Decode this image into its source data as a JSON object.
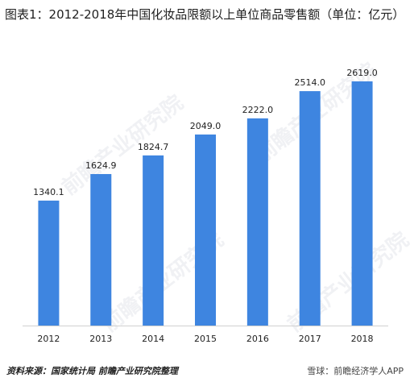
{
  "chart_data": {
    "type": "bar",
    "title": "图表1：2012-2018年中国化妆品限额以上单位商品零售额（单位：亿元）",
    "categories": [
      "2012",
      "2013",
      "2014",
      "2015",
      "2016",
      "2017",
      "2018"
    ],
    "values": [
      1340.1,
      1624.9,
      1824.7,
      2049.0,
      2222.0,
      2514.0,
      2619.0
    ],
    "value_labels": [
      "1340.1",
      "1624.9",
      "1824.7",
      "2049.0",
      "2222.0",
      "2514.0",
      "2619.0"
    ],
    "xlabel": "",
    "ylabel": "",
    "ylim": [
      0,
      2800
    ],
    "grid": false,
    "legend": "none",
    "bar_color": "#3e85e0"
  },
  "footer": {
    "source": "资料来源：国家统计局 前瞻产业研究院整理",
    "brand": "雪球：前瞻经济学人APP"
  },
  "watermark": "前瞻产业研究院"
}
